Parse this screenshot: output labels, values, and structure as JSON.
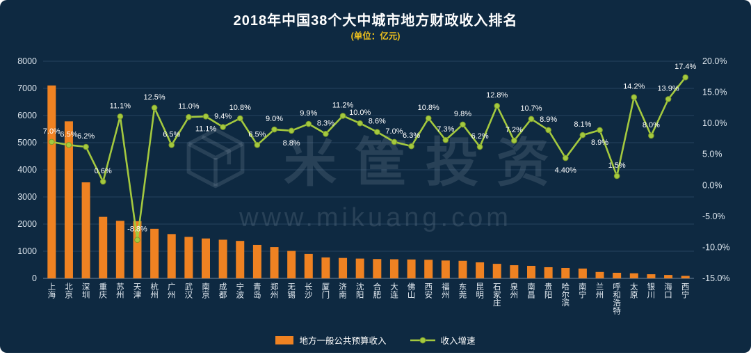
{
  "chart_data": {
    "type": "combo",
    "title": "2018年中国38个大中城市地方财政收入排名",
    "subtitle": "(单位：亿元)",
    "background": "#0e2941",
    "subtitle_color": "#f2c41c",
    "categories": [
      "上海",
      "北京",
      "深圳",
      "重庆",
      "苏州",
      "天津",
      "杭州",
      "广州",
      "武汉",
      "南京",
      "成都",
      "宁波",
      "青岛",
      "郑州",
      "无锡",
      "长沙",
      "厦门",
      "济南",
      "沈阳",
      "合肥",
      "大连",
      "佛山",
      "西安",
      "福州",
      "东莞",
      "昆明",
      "石家庄",
      "泉州",
      "南昌",
      "贵阳",
      "哈尔滨",
      "南宁",
      "兰州",
      "呼和浩特",
      "太原",
      "银川",
      "海口",
      "西宁"
    ],
    "series": [
      {
        "name": "地方一般公共预算收入",
        "type": "bar",
        "axis": "left",
        "color": "#ef8222",
        "values": [
          7108,
          5786,
          3538,
          2266,
          2120,
          2106,
          1825,
          1632,
          1529,
          1470,
          1424,
          1380,
          1232,
          1152,
          1012,
          900,
          771,
          752,
          729,
          712,
          704,
          696,
          685,
          658,
          647,
          590,
          536,
          485,
          462,
          411,
          385,
          362,
          236,
          206,
          188,
          152,
          125,
          92
        ]
      },
      {
        "name": "收入增速",
        "type": "line",
        "axis": "right",
        "color": "#a4c93f",
        "marker_edge": "#7e9c28",
        "values": [
          7.0,
          6.5,
          6.2,
          0.6,
          11.1,
          -8.8,
          12.5,
          6.5,
          11.0,
          11.1,
          9.4,
          10.8,
          6.5,
          9.0,
          8.8,
          9.9,
          8.3,
          11.2,
          10.0,
          8.6,
          7.0,
          6.3,
          10.8,
          7.3,
          9.8,
          6.2,
          12.8,
          7.2,
          10.7,
          8.9,
          4.4,
          8.1,
          8.9,
          1.5,
          14.2,
          8.0,
          13.9,
          17.4
        ],
        "data_labels": [
          "7.0%",
          "6.5%",
          "6.2%",
          "0.6%",
          "11.1%",
          "-8.8%",
          "12.5%",
          "6.5%",
          "11.0%",
          "11.1%",
          "9.4%",
          "10.8%",
          "6.5%",
          "9.0%",
          "8.8%",
          "9.9%",
          "8.3%",
          "11.2%",
          "10.0%",
          "8.6%",
          "7.0%",
          "6.3%",
          "10.8%",
          "7.3%",
          "9.8%",
          "6.2%",
          "12.8%",
          "7.2%",
          "10.7%",
          "8.9%",
          "4.40%",
          "8.1%",
          "8.9%",
          "1.5%",
          "14.2%",
          "8.0%",
          "13.9%",
          "17.4%"
        ],
        "data_labels_below": [
          9,
          14,
          30,
          32
        ]
      }
    ],
    "left_axis": {
      "min": 0,
      "max": 8000,
      "tick_labels": [
        "8000",
        "7000",
        "6000",
        "5000",
        "4000",
        "3000",
        "2000",
        "1000",
        "0"
      ]
    },
    "right_axis": {
      "min": -15,
      "max": 20,
      "tick_labels": [
        "20.0%",
        "15.0%",
        "10.0%",
        "5.0%",
        "0.0%",
        "-5.0%",
        "-10.0%",
        "-15.0%"
      ]
    },
    "grid": true,
    "legend_position": "bottom"
  },
  "watermark": {
    "brand": "米筐投资",
    "url": "www.mikuang.com",
    "logo": "mikuang-cube-logo"
  }
}
